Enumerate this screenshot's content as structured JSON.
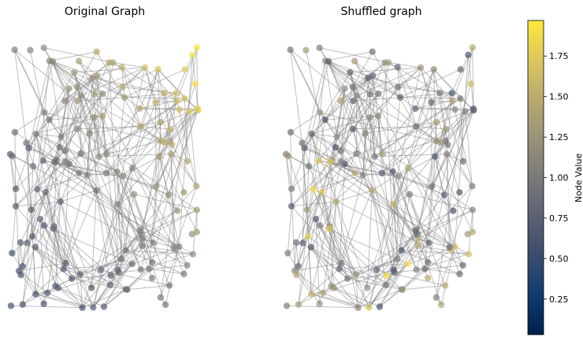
{
  "chart_data": [
    {
      "type": "network",
      "title": "Original Graph",
      "node_count": 150,
      "edge_count": 420,
      "node_value_pattern": "values shade from ~0.6 (blue, lower-left) through ~1.0 (gray, center) to ~1.9 (yellow, upper-right)",
      "layout_seed": 7,
      "value_range": [
        0.6,
        1.95
      ]
    },
    {
      "type": "network",
      "title": "Shuffled graph",
      "node_count": 150,
      "edge_count": 420,
      "node_value_pattern": "same node values randomly permuted across nodes",
      "layout_seed": 7,
      "value_range": [
        0.6,
        1.95
      ]
    }
  ],
  "colorbar": {
    "label": "Node Value",
    "colormap": "cividis",
    "vmin": 0.03,
    "vmax": 1.97,
    "ticks": [
      0.25,
      0.5,
      0.75,
      1.0,
      1.25,
      1.5,
      1.75
    ],
    "tick_labels": [
      "0.25",
      "0.50",
      "0.75",
      "1.00",
      "1.25",
      "1.50",
      "1.75"
    ]
  },
  "colors": {
    "edge": "#808080",
    "background": "#ffffff"
  }
}
